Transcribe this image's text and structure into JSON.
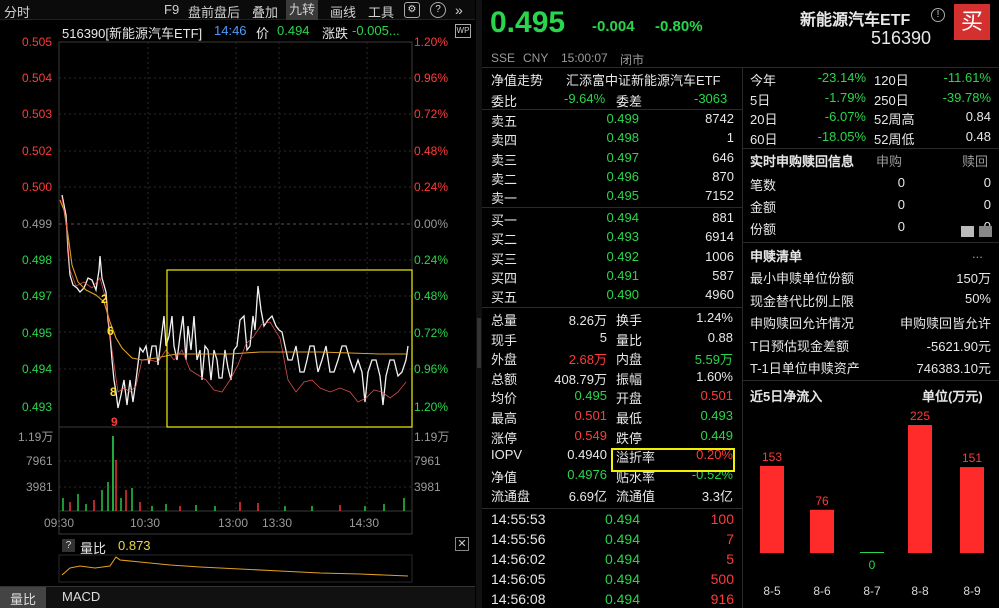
{
  "toolbar": {
    "items": [
      "分时",
      "F9",
      "盘前盘后",
      "叠加",
      "九转",
      "画线",
      "工具"
    ],
    "active": "九转"
  },
  "chart_info": {
    "code_name": "516390[新能源汽车ETF]",
    "time": "14:46",
    "price_label": "价",
    "price": "0.494",
    "change_label": "涨跌",
    "change": "-0.005..."
  },
  "price_axis": [
    "0.505",
    "0.504",
    "0.503",
    "0.502",
    "0.501",
    "0.500",
    "0.499",
    "0.498",
    "0.497",
    "0.495",
    "0.494",
    "0.493"
  ],
  "pct_axis": [
    "1.20%",
    "0.96%",
    "0.72%",
    "0.48%",
    "0.24%",
    "0.00%",
    "0.24%",
    "0.48%",
    "0.72%",
    "0.96%",
    "1.20%"
  ],
  "volume_axis_left": [
    "1.19万",
    "7961",
    "3981"
  ],
  "volume_axis_right": [
    "1.19万",
    "7961",
    "3981"
  ],
  "time_axis": [
    "09:30",
    "10:30",
    "13:00",
    "13:30",
    "14:30"
  ],
  "nine_turn_labels": [
    "2",
    "6",
    "8",
    "9"
  ],
  "sub_chart": {
    "label": "量比",
    "value": "0.873"
  },
  "bottom_tabs": [
    "量比",
    "MACD"
  ],
  "quote": {
    "price": "0.495",
    "change": "-0.004",
    "change_pct": "-0.80%",
    "name": "新能源汽车ETF",
    "code": "516390",
    "market": "SSE",
    "currency": "CNY",
    "time": "15:00:07",
    "status": "闭市",
    "buy_label": "买"
  },
  "nav_trend": {
    "label": "净值走势",
    "fund": "汇添富中证新能源汽车ETF"
  },
  "order_ratio": {
    "label1": "委比",
    "value1": "-9.64%",
    "label2": "委差",
    "value2": "-3063"
  },
  "sells": [
    {
      "label": "卖五",
      "price": "0.499",
      "vol": "8742"
    },
    {
      "label": "卖四",
      "price": "0.498",
      "vol": "1"
    },
    {
      "label": "卖三",
      "price": "0.497",
      "vol": "646"
    },
    {
      "label": "卖二",
      "price": "0.496",
      "vol": "870"
    },
    {
      "label": "卖一",
      "price": "0.495",
      "vol": "7152"
    }
  ],
  "buys": [
    {
      "label": "买一",
      "price": "0.494",
      "vol": "881"
    },
    {
      "label": "买二",
      "price": "0.493",
      "vol": "6914"
    },
    {
      "label": "买三",
      "price": "0.492",
      "vol": "1006"
    },
    {
      "label": "买四",
      "price": "0.491",
      "vol": "587"
    },
    {
      "label": "买五",
      "price": "0.490",
      "vol": "4960"
    }
  ],
  "stats": [
    {
      "l1": "总量",
      "v1": "8.26万",
      "l2": "换手",
      "v2": "1.24%"
    },
    {
      "l1": "现手",
      "v1": "5",
      "l2": "量比",
      "v2": "0.88"
    },
    {
      "l1": "外盘",
      "v1": "2.68万",
      "l2": "内盘",
      "v2": "5.59万"
    },
    {
      "l1": "总额",
      "v1": "408.79万",
      "l2": "振幅",
      "v2": "1.60%"
    },
    {
      "l1": "均价",
      "v1": "0.495",
      "l2": "开盘",
      "v2": "0.501"
    },
    {
      "l1": "最高",
      "v1": "0.501",
      "l2": "最低",
      "v2": "0.493"
    },
    {
      "l1": "涨停",
      "v1": "0.549",
      "l2": "跌停",
      "v2": "0.449"
    },
    {
      "l1": "IOPV",
      "v1": "0.4940",
      "l2": "溢折率",
      "v2": "0.20%"
    },
    {
      "l1": "净值",
      "v1": "0.4976",
      "l2": "贴水率",
      "v2": "-0.52%"
    },
    {
      "l1": "流通盘",
      "v1": "6.69亿",
      "l2": "流通值",
      "v2": "3.3亿"
    }
  ],
  "ticks": [
    {
      "time": "14:55:53",
      "price": "0.494",
      "vol": "100"
    },
    {
      "time": "14:55:56",
      "price": "0.494",
      "vol": "7"
    },
    {
      "time": "14:56:02",
      "price": "0.494",
      "vol": "5"
    },
    {
      "time": "14:56:05",
      "price": "0.494",
      "vol": "500"
    },
    {
      "time": "14:56:08",
      "price": "0.494",
      "vol": "916"
    }
  ],
  "periods": [
    {
      "l1": "今年",
      "v1": "-23.14%",
      "l2": "120日",
      "v2": "-11.61%"
    },
    {
      "l1": "5日",
      "v1": "-1.79%",
      "l2": "250日",
      "v2": "-39.78%"
    },
    {
      "l1": "20日",
      "v1": "-6.07%",
      "l2": "52周高",
      "v2": "0.84"
    },
    {
      "l1": "60日",
      "v1": "-18.05%",
      "l2": "52周低",
      "v2": "0.48"
    }
  ],
  "redeem": {
    "title": "实时申购赎回信息",
    "col1": "申购",
    "col2": "赎回",
    "rows": [
      {
        "label": "笔数",
        "a": "0",
        "b": "0"
      },
      {
        "label": "金额",
        "a": "0",
        "b": "0"
      },
      {
        "label": "份额",
        "a": "0",
        "b": "0"
      }
    ]
  },
  "list": {
    "title": "申赎清单",
    "more": "...",
    "rows": [
      {
        "label": "最小申赎单位份额",
        "value": "150万"
      },
      {
        "label": "现金替代比例上限",
        "value": "50%"
      },
      {
        "label": "申购赎回允许情况",
        "value": "申购赎回皆允许"
      },
      {
        "label": "T日预估现金差额",
        "value": "-5621.90元"
      },
      {
        "label": "T-1日单位申赎资产",
        "value": "746383.10元"
      }
    ]
  },
  "netflow": {
    "title": "近5日净流入",
    "unit": "单位(万元)"
  },
  "chart_data": {
    "type": "bar",
    "categories": [
      "8-5",
      "8-6",
      "8-7",
      "8-8",
      "8-9"
    ],
    "values": [
      153,
      76,
      0,
      225,
      151
    ],
    "ylim": [
      0,
      225
    ]
  },
  "colors": {
    "up": "#ff3b3b",
    "down": "#29d64b",
    "highlight": "#f0f000"
  }
}
